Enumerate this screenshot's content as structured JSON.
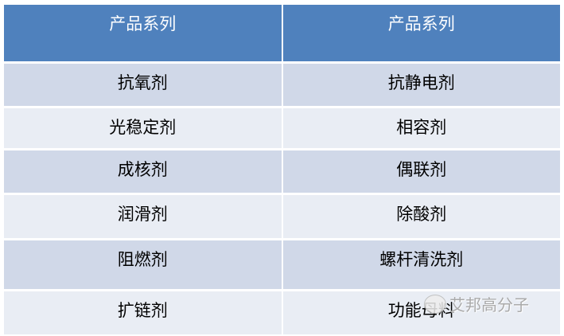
{
  "table": {
    "headers": [
      "产品系列",
      "产品系列"
    ],
    "rows": [
      [
        "抗氧剂",
        "抗静电剂"
      ],
      [
        "光稳定剂",
        "相容剂"
      ],
      [
        "成核剂",
        "偶联剂"
      ],
      [
        "润滑剂",
        "除酸剂"
      ],
      [
        "阻燃剂",
        "螺杆清洗剂"
      ],
      [
        "扩链剂",
        "功能母料"
      ]
    ]
  },
  "watermark": {
    "text": "艾邦高分子",
    "icon": "wechat-icon"
  },
  "colors": {
    "header": "#4f81bd",
    "row_odd": "#d0d8e8",
    "row_even": "#e9edf4"
  }
}
